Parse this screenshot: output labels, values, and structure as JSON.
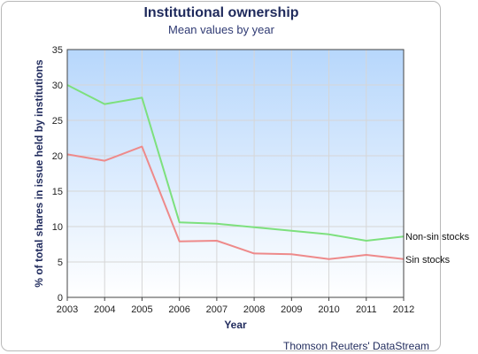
{
  "chart_data": {
    "type": "line",
    "title": "Institutional ownership",
    "subtitle": "Mean values by year",
    "xlabel": "Year",
    "ylabel": "% of total shares in issue held by institutions",
    "ylim": [
      0,
      35
    ],
    "yticks": [
      0,
      5,
      10,
      15,
      20,
      25,
      30,
      35
    ],
    "x": [
      2003,
      2004,
      2005,
      2006,
      2007,
      2008,
      2009,
      2010,
      2011,
      2012
    ],
    "grid": true,
    "legend": "end-of-line labels",
    "source": "Thomson Reuters' DataStream",
    "series": [
      {
        "name": "Non-sin stocks",
        "color": "#7de07d",
        "values": [
          30.0,
          27.3,
          28.2,
          10.6,
          10.4,
          9.9,
          9.4,
          8.9,
          8.0,
          8.6
        ]
      },
      {
        "name": "Sin stocks",
        "color": "#ee8a8a",
        "values": [
          20.2,
          19.3,
          21.3,
          7.9,
          8.0,
          6.2,
          6.1,
          5.4,
          6.0,
          5.4
        ]
      }
    ]
  }
}
